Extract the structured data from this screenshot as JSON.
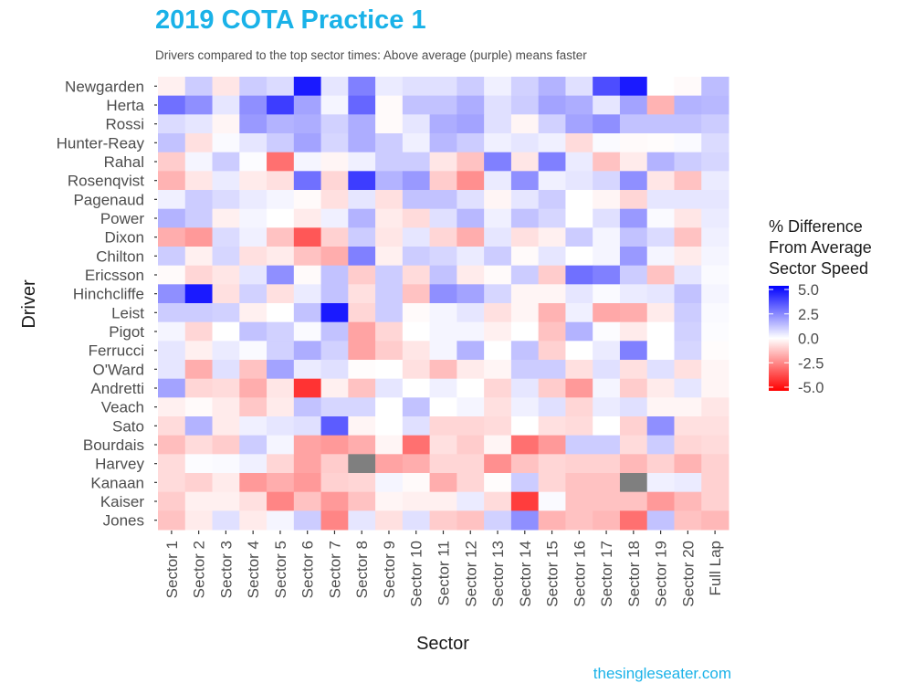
{
  "chart_data": {
    "type": "heatmap",
    "title": "2019 COTA Practice 1",
    "subtitle": "Drivers compared to the top sector times: Above average (purple) means faster",
    "xlabel": "Sector",
    "ylabel": "Driver",
    "credit": "thesingleseater.com",
    "x": [
      "Sector 1",
      "Sector 2",
      "Sector 3",
      "Sector 4",
      "Sector 5",
      "Sector 6",
      "Sector 7",
      "Sector 8",
      "Sector 9",
      "Sector 10",
      "Sector 11",
      "Sector 12",
      "Sector 13",
      "Sector 14",
      "Sector 15",
      "Sector 16",
      "Sector 17",
      "Sector 18",
      "Sector 19",
      "Sector 20",
      "Full Lap"
    ],
    "y": [
      "Newgarden",
      "Herta",
      "Rossi",
      "Hunter-Reay",
      "Rahal",
      "Rosenqvist",
      "Pagenaud",
      "Power",
      "Dixon",
      "Chilton",
      "Ericsson",
      "Hinchcliffe",
      "Leist",
      "Pigot",
      "Ferrucci",
      "O'Ward",
      "Andretti",
      "Veach",
      "Sato",
      "Bourdais",
      "Harvey",
      "Kanaan",
      "Kaiser",
      "Jones"
    ],
    "values": [
      [
        -0.3,
        1.0,
        -0.5,
        1.0,
        0.7,
        4.5,
        0.5,
        2.5,
        0.4,
        0.6,
        0.6,
        1.0,
        0.3,
        0.9,
        1.5,
        0.6,
        3.5,
        4.5,
        0.0,
        -0.1,
        1.3
      ],
      [
        2.8,
        2.2,
        0.5,
        2.2,
        3.8,
        1.8,
        0.2,
        3.0,
        -0.1,
        1.2,
        1.2,
        1.6,
        0.6,
        1.0,
        1.8,
        1.6,
        0.5,
        1.8,
        -1.5,
        1.5,
        1.4
      ],
      [
        0.7,
        0.5,
        -0.2,
        2.0,
        1.5,
        1.6,
        0.9,
        1.6,
        -0.1,
        0.5,
        1.6,
        1.8,
        0.6,
        -0.2,
        0.9,
        1.8,
        2.2,
        1.2,
        1.2,
        1.2,
        1.0
      ],
      [
        1.2,
        -0.6,
        0.1,
        0.5,
        1.0,
        1.8,
        0.8,
        1.6,
        1.0,
        0.3,
        1.4,
        1.0,
        0.3,
        0.5,
        0.3,
        -0.7,
        0.1,
        -0.1,
        -0.05,
        0.1,
        0.7
      ],
      [
        -1.0,
        0.2,
        1.0,
        0.05,
        -2.8,
        0.2,
        -0.2,
        0.3,
        1.0,
        1.0,
        -0.5,
        -1.2,
        2.5,
        -0.5,
        2.5,
        0.4,
        -1.2,
        -0.4,
        1.5,
        1.0,
        0.8
      ],
      [
        -1.5,
        -0.5,
        0.4,
        -0.4,
        -0.6,
        2.8,
        -0.8,
        3.8,
        1.5,
        2.0,
        -1.0,
        -2.2,
        0.4,
        2.2,
        0.3,
        0.5,
        0.8,
        2.2,
        -0.5,
        -1.2,
        0.4
      ],
      [
        0.3,
        1.0,
        0.7,
        0.4,
        0.2,
        -0.1,
        -0.6,
        0.5,
        -0.6,
        1.2,
        1.2,
        0.6,
        -0.2,
        0.5,
        1.0,
        0.0,
        -0.2,
        -0.8,
        0.5,
        0.5,
        0.5
      ],
      [
        1.5,
        1.0,
        -0.3,
        0.2,
        0.0,
        -0.4,
        0.3,
        1.5,
        -0.4,
        -0.7,
        0.6,
        1.4,
        0.3,
        1.2,
        0.8,
        0.0,
        0.6,
        2.0,
        0.1,
        -0.5,
        0.4
      ],
      [
        -1.6,
        -2.0,
        0.7,
        0.3,
        -1.2,
        -3.3,
        -0.9,
        1.0,
        -0.5,
        0.5,
        -0.8,
        -1.6,
        0.5,
        -0.6,
        -0.3,
        1.0,
        0.2,
        1.2,
        0.7,
        -1.2,
        0.3
      ],
      [
        1.0,
        -0.3,
        0.8,
        -0.6,
        -0.4,
        -1.2,
        -1.6,
        2.5,
        -0.3,
        1.0,
        0.8,
        0.4,
        1.0,
        -0.1,
        0.5,
        0.0,
        0.2,
        2.0,
        0.2,
        -0.4,
        0.2
      ],
      [
        -0.1,
        -0.8,
        -0.5,
        0.5,
        2.2,
        -0.1,
        1.2,
        -1.0,
        1.0,
        -0.7,
        1.2,
        -0.4,
        -0.1,
        1.0,
        -1.0,
        2.8,
        2.5,
        1.0,
        -1.2,
        0.5,
        0.1
      ],
      [
        2.2,
        4.5,
        -0.6,
        0.9,
        -0.6,
        0.4,
        1.2,
        -0.6,
        1.0,
        -1.2,
        2.2,
        1.8,
        0.8,
        -0.2,
        -0.2,
        0.5,
        0.1,
        0.4,
        0.5,
        1.2,
        0.2
      ],
      [
        1.0,
        1.0,
        0.9,
        -0.3,
        0.0,
        1.2,
        4.5,
        -0.8,
        1.0,
        -0.1,
        0.2,
        0.5,
        -0.6,
        -0.2,
        -1.5,
        0.3,
        -1.7,
        -1.6,
        -0.4,
        1.0,
        0.1
      ],
      [
        0.2,
        -0.8,
        0.0,
        1.2,
        0.9,
        0.1,
        1.2,
        -1.8,
        -0.8,
        0.0,
        0.2,
        0.2,
        -0.3,
        0.0,
        -1.2,
        1.5,
        0.05,
        -0.4,
        0.0,
        0.9,
        0.05
      ],
      [
        0.5,
        -0.3,
        0.4,
        0.1,
        0.9,
        1.6,
        0.9,
        -1.8,
        -1.0,
        -0.5,
        0.2,
        1.5,
        0.0,
        1.2,
        -0.9,
        0.0,
        0.4,
        2.5,
        0.0,
        0.8,
        -0.05
      ],
      [
        0.5,
        -1.6,
        0.6,
        -1.2,
        1.8,
        0.4,
        0.6,
        -0.05,
        0.0,
        -0.6,
        -1.3,
        -0.4,
        -0.2,
        1.0,
        1.0,
        -0.6,
        0.6,
        -0.6,
        0.6,
        -0.6,
        -0.2
      ],
      [
        1.8,
        -0.8,
        -0.7,
        -1.6,
        -0.5,
        -4.0,
        -0.3,
        -1.2,
        0.5,
        0.0,
        0.3,
        0.0,
        -0.8,
        0.5,
        -1.0,
        -2.0,
        0.2,
        -1.0,
        -0.4,
        0.5,
        -0.2
      ],
      [
        -0.3,
        -0.1,
        -0.4,
        -1.1,
        -0.4,
        1.2,
        0.8,
        0.8,
        0.0,
        1.2,
        0.0,
        0.2,
        -0.6,
        0.3,
        0.6,
        -0.8,
        0.4,
        0.6,
        -0.2,
        -0.2,
        -0.5
      ],
      [
        -0.7,
        1.5,
        -0.4,
        0.3,
        0.5,
        0.6,
        3.2,
        -0.2,
        0.0,
        0.6,
        -0.8,
        -0.8,
        -0.7,
        0.0,
        -0.6,
        -0.7,
        0.0,
        -0.9,
        2.2,
        -0.6,
        -0.6
      ],
      [
        -1.3,
        -0.7,
        -1.0,
        1.0,
        0.2,
        -1.8,
        -2.0,
        -1.6,
        -0.2,
        -2.8,
        -0.6,
        -1.0,
        -0.2,
        -2.8,
        -2.0,
        1.0,
        1.0,
        -0.7,
        1.0,
        -0.8,
        -0.7
      ],
      [
        -0.7,
        0.05,
        0.1,
        0.3,
        -0.8,
        -1.8,
        -1.0,
        null,
        -1.8,
        -1.6,
        -0.8,
        -0.8,
        -2.2,
        -1.2,
        -0.8,
        -0.9,
        -0.9,
        -1.4,
        -0.9,
        -1.5,
        -0.9
      ],
      [
        -0.7,
        -0.9,
        -0.4,
        -2.0,
        -1.6,
        -2.0,
        -0.9,
        -0.8,
        0.2,
        -0.1,
        -1.6,
        -0.8,
        -0.05,
        1.0,
        -0.8,
        -1.2,
        -1.2,
        null,
        0.3,
        0.4,
        -0.9
      ],
      [
        -1.0,
        -0.3,
        -0.3,
        -0.6,
        -2.4,
        -1.2,
        -2.0,
        -1.2,
        -0.2,
        -0.3,
        -0.3,
        0.4,
        -0.7,
        -3.8,
        0.1,
        -1.2,
        -1.2,
        -1.2,
        -2.0,
        -1.4,
        -0.9
      ],
      [
        -1.2,
        -0.4,
        0.6,
        -0.4,
        0.2,
        1.0,
        -2.4,
        0.5,
        -0.6,
        0.6,
        -1.0,
        -1.2,
        0.9,
        2.2,
        -1.5,
        -1.2,
        -1.4,
        -2.8,
        1.2,
        -1.2,
        -1.4
      ]
    ],
    "color_scale": {
      "low": "#ff0000",
      "mid": "#ffffff",
      "high": "#0000ff",
      "na": "#7f7f7f",
      "limits": [
        -5,
        5
      ]
    },
    "legend": {
      "title": [
        "% Difference",
        "From Average",
        "Sector Speed"
      ],
      "breaks": [
        5.0,
        2.5,
        0.0,
        -2.5,
        -5.0
      ],
      "labels": [
        "5.0",
        "2.5",
        "0.0",
        "-2.5",
        "-5.0"
      ],
      "position": "right"
    },
    "grid": false
  }
}
